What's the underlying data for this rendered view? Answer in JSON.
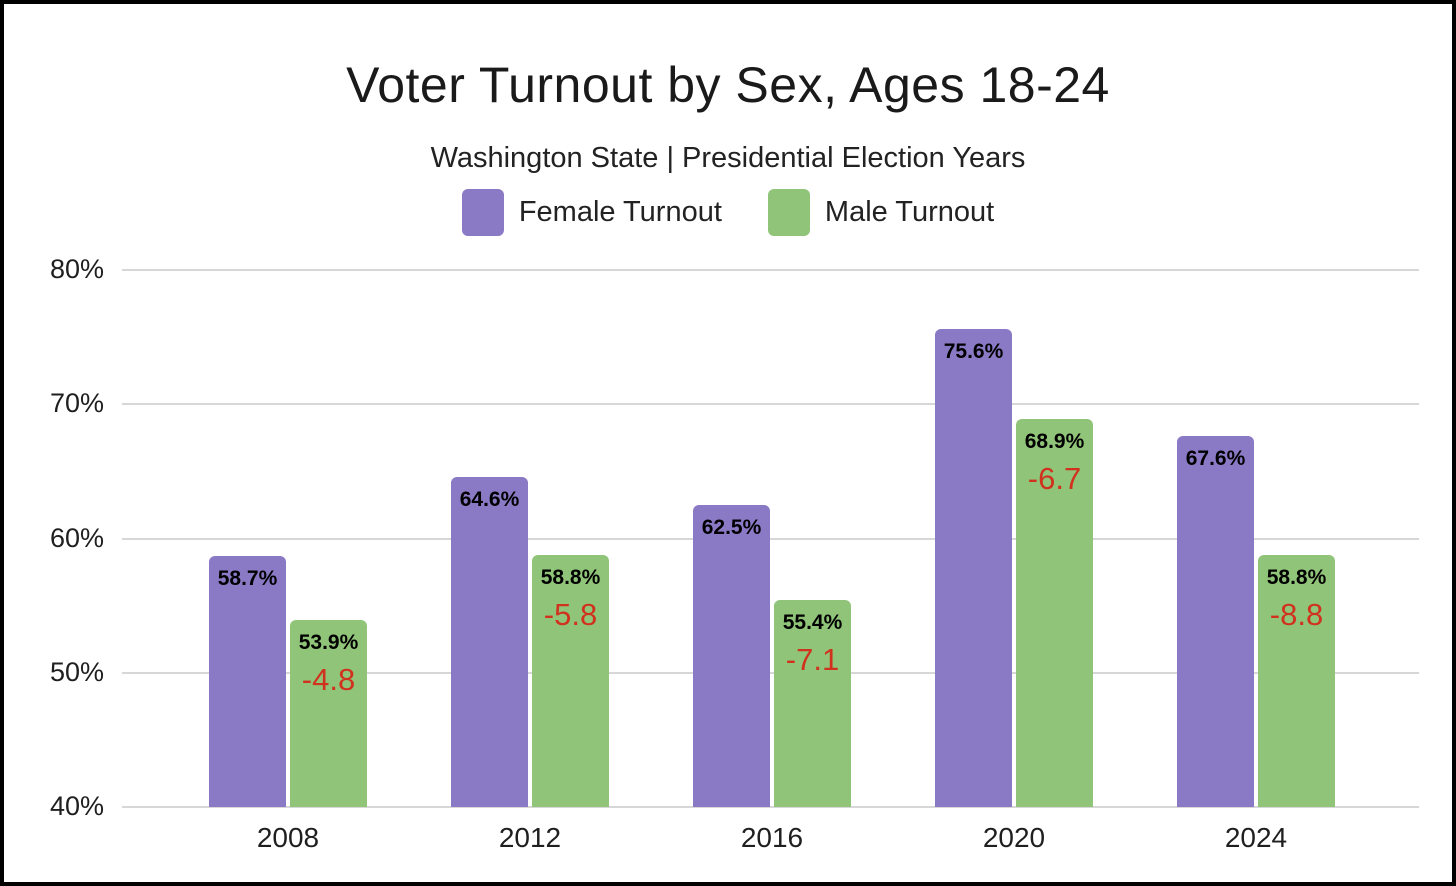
{
  "header": {
    "title": "Voter Turnout by Sex, Ages 18-24",
    "subtitle": "Washington State | Presidential Election Years"
  },
  "colors": {
    "female": "#8a7ac6",
    "male": "#90c579",
    "diff_text": "#d0321e",
    "gridline": "#d7d7d7",
    "frame_border": "#000000",
    "text": "#1f1f1f"
  },
  "chart_data": {
    "type": "bar",
    "title": "Voter Turnout by Sex, Ages 18-24",
    "subtitle": "Washington State | Presidential Election Years",
    "categories": [
      "2008",
      "2012",
      "2016",
      "2020",
      "2024"
    ],
    "series": [
      {
        "name": "Female Turnout",
        "color": "#8a7ac6",
        "values": [
          58.7,
          64.6,
          62.5,
          75.6,
          67.6
        ],
        "value_labels": [
          "58.7%",
          "64.6%",
          "62.5%",
          "75.6%",
          "67.6%"
        ]
      },
      {
        "name": "Male Turnout",
        "color": "#90c579",
        "values": [
          53.9,
          58.8,
          55.4,
          68.9,
          58.8
        ],
        "value_labels": [
          "53.9%",
          "58.8%",
          "55.4%",
          "68.9%",
          "58.8%"
        ],
        "diff_labels": [
          "-4.8",
          "-5.8",
          "-7.1",
          "-6.7",
          "-8.8"
        ]
      }
    ],
    "xlabel": "",
    "ylabel": "",
    "ylim": [
      40,
      80
    ],
    "yticks": [
      80,
      70,
      60,
      50,
      40
    ],
    "ytick_labels": [
      "80%",
      "70%",
      "60%",
      "50%",
      "40%"
    ],
    "grid": true,
    "legend_position": "top",
    "legend": [
      "Female Turnout",
      "Male Turnout"
    ]
  }
}
